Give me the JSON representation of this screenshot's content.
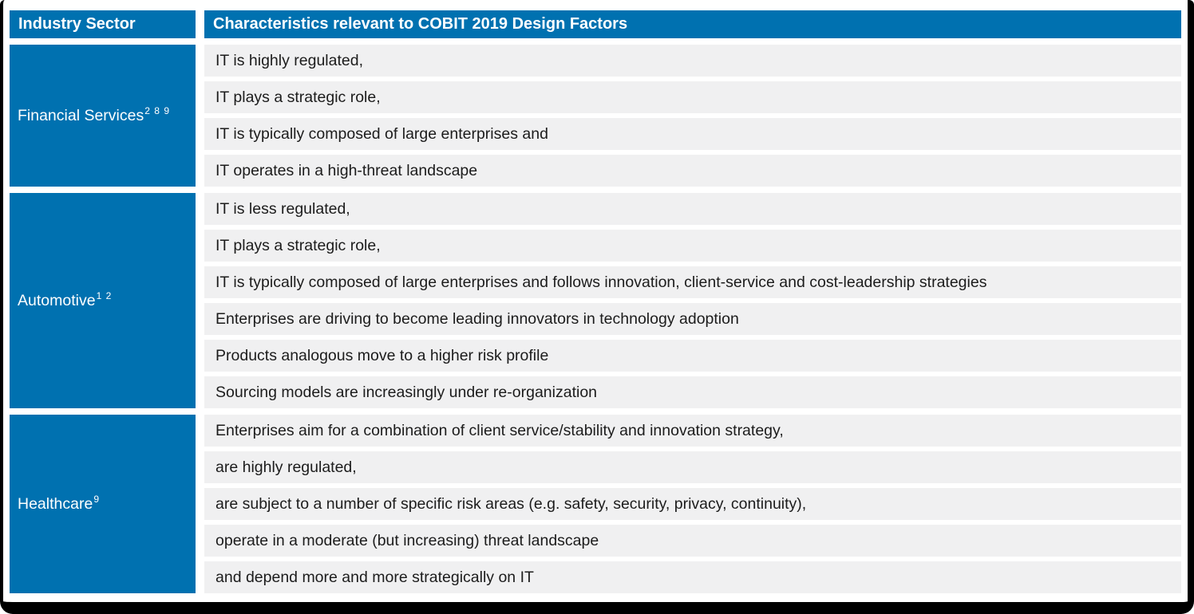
{
  "header": {
    "sector": "Industry Sector",
    "characteristics": "Characteristics relevant to COBIT 2019 Design Factors"
  },
  "colors": {
    "accent_blue": "#0071b0",
    "row_gray": "#f0f0f1",
    "frame_black": "#000000",
    "header_text": "#ffffff",
    "body_text": "#1c1c1c"
  },
  "table": {
    "sections": [
      {
        "name": "Financial Services",
        "superscript": "2 8 9",
        "characteristics": [
          "IT is highly regulated,",
          "IT plays a strategic role,",
          "IT is typically composed of large enterprises and",
          "IT operates in a high-threat landscape"
        ]
      },
      {
        "name": "Automotive",
        "superscript": "1 2",
        "characteristics": [
          "IT is less regulated,",
          "IT plays a strategic role,",
          "IT is typically composed of large enterprises and follows innovation, client-service and cost-leadership strategies",
          "Enterprises are driving to become leading innovators in technology adoption",
          "Products analogous move to a higher risk profile",
          "Sourcing models are increasingly under re-organization"
        ]
      },
      {
        "name": "Healthcare",
        "superscript": "9",
        "characteristics": [
          "Enterprises aim for a combination of client service/stability and innovation strategy,",
          "are highly regulated,",
          "are subject to a number of specific risk areas (e.g. safety, security, privacy, continuity),",
          "operate in a moderate (but increasing) threat landscape",
          "and depend more and more strategically on IT"
        ]
      }
    ]
  }
}
